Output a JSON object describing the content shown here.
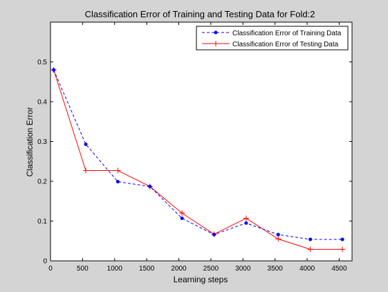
{
  "window": {
    "background": "#d4d4d4"
  },
  "chart_data": {
    "type": "line",
    "title": "Classification Error of Training and Testing Data for Fold:2",
    "xlabel": "Learning steps",
    "ylabel": "Classification Error",
    "xlim": [
      0,
      4700
    ],
    "ylim": [
      0,
      0.6
    ],
    "xticks": [
      0,
      500,
      1000,
      1500,
      2000,
      2500,
      3000,
      3500,
      4000,
      4500
    ],
    "yticks": [
      0,
      0.1,
      0.2,
      0.3,
      0.4,
      0.5
    ],
    "ytick_labels": [
      "0",
      "0.1",
      "0.2",
      "0.3",
      "0.4",
      "0.5"
    ],
    "grid": false,
    "legend_position": "top-right",
    "x": [
      50,
      550,
      1050,
      1550,
      2050,
      2550,
      3050,
      3550,
      4050,
      4550
    ],
    "series": [
      {
        "name": "Classification Error of Training Data",
        "color": "#0000ff",
        "marker": "dot",
        "line_style": "dashed",
        "values": [
          0.48,
          0.293,
          0.199,
          0.187,
          0.107,
          0.066,
          0.095,
          0.066,
          0.054,
          0.054
        ]
      },
      {
        "name": "Classification Error of Testing Data",
        "color": "#ff0000",
        "marker": "plus",
        "line_style": "solid",
        "values": [
          0.48,
          0.227,
          0.227,
          0.187,
          0.12,
          0.067,
          0.107,
          0.055,
          0.029,
          0.029
        ]
      }
    ]
  }
}
